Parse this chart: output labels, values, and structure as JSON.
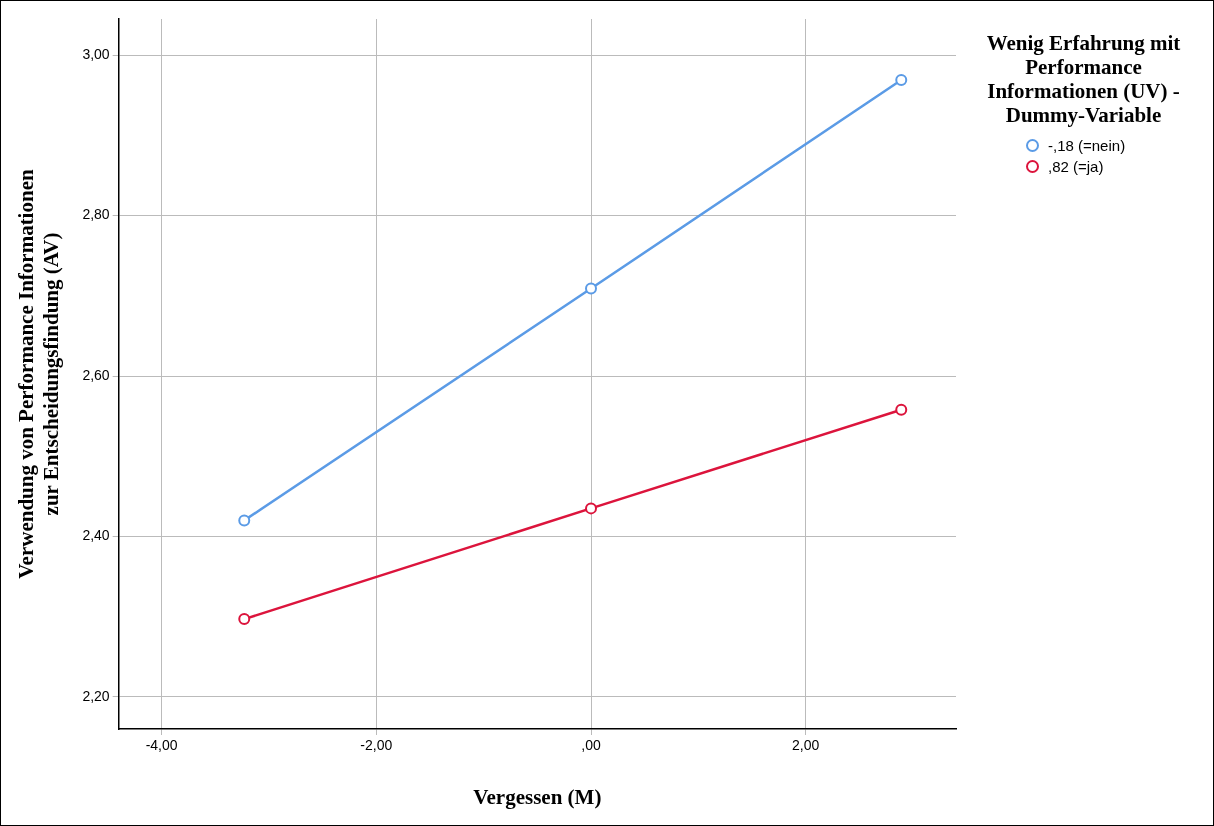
{
  "chart_data": {
    "type": "line",
    "xlabel": "Vergessen (M)",
    "ylabel": "Verwendung von Performance Informationen zur Entscheidungsfindung (AV)",
    "legend_title": "Wenig Erfahrung mit Performance Informationen (UV) - Dummy-Variable",
    "legend": "top right",
    "grid": true,
    "marker": "circle",
    "line_style": "solid",
    "x": [
      -3.23,
      0,
      2.89
    ],
    "series": [
      {
        "name": "-,18 (=nein)",
        "color": "#5b9be6",
        "values": [
          2.42,
          2.709,
          2.969
        ]
      },
      {
        "name": ",82 (=ja)",
        "color": "#dc143c",
        "values": [
          2.297,
          2.435,
          2.558
        ]
      }
    ],
    "xlim": [
      -4.4,
      3.4
    ],
    "xticks": [
      {
        "value": -4,
        "label": "-4,00"
      },
      {
        "value": -2,
        "label": "-2,00"
      },
      {
        "value": 0,
        "label": ",00"
      },
      {
        "value": 2,
        "label": "2,00"
      }
    ],
    "ylim": [
      2.16,
      3.045
    ],
    "yticks": [
      {
        "value": 2.2,
        "label": "2,20"
      },
      {
        "value": 2.4,
        "label": "2,40"
      },
      {
        "value": 2.6,
        "label": "2,60"
      },
      {
        "value": 2.8,
        "label": "2,80"
      },
      {
        "value": 3.0,
        "label": "3,00"
      }
    ]
  }
}
